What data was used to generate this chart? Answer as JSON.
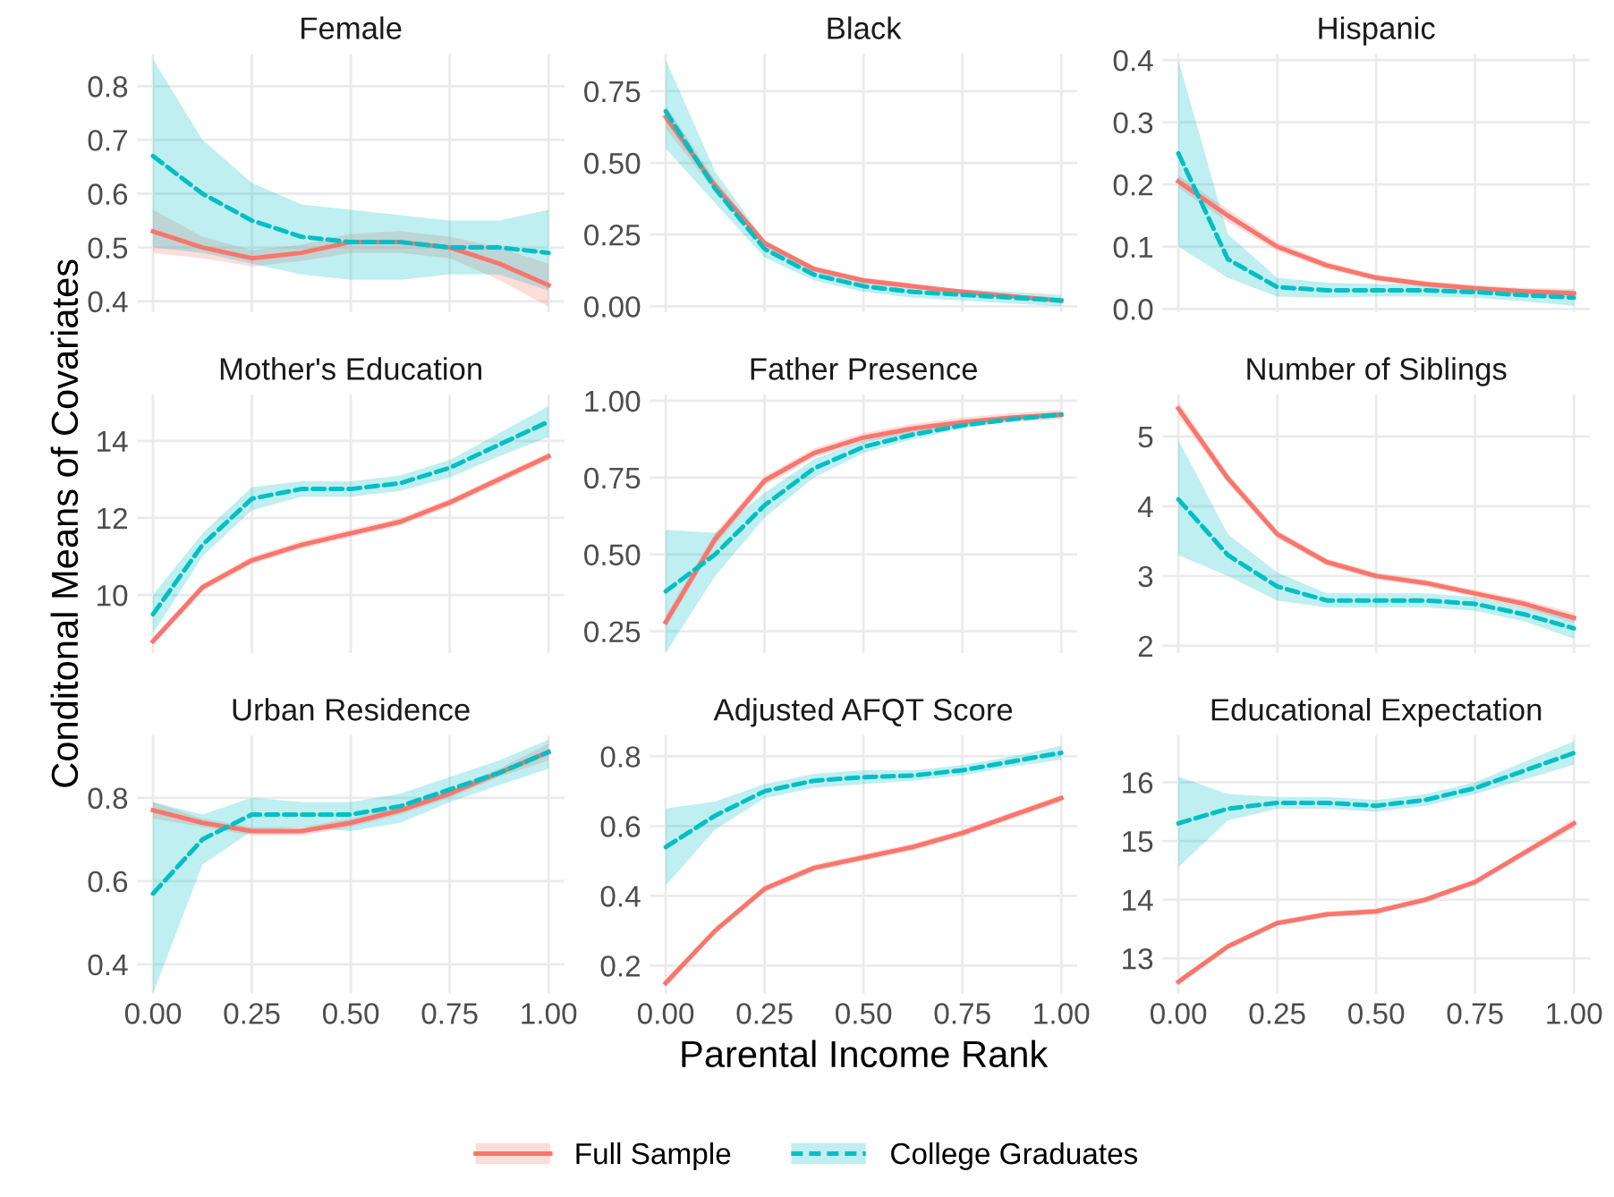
{
  "chart_data": [
    {
      "type": "line",
      "title": "Female",
      "x": [
        0,
        0.125,
        0.25,
        0.375,
        0.5,
        0.625,
        0.75,
        0.875,
        1
      ],
      "xlim": [
        -0.04,
        1.04
      ],
      "xticks": [
        0,
        0.25,
        0.5,
        0.75,
        1
      ],
      "ylim": [
        0.38,
        0.86
      ],
      "yticks": [
        0.4,
        0.5,
        0.6,
        0.7,
        0.8
      ],
      "grid": true,
      "tick_labels": "y",
      "series": [
        {
          "color": "#f8766d",
          "line_style": "solid",
          "values": [
            0.53,
            0.5,
            0.48,
            0.49,
            0.51,
            0.51,
            0.5,
            0.47,
            0.43
          ],
          "lower": [
            0.49,
            0.48,
            0.465,
            0.475,
            0.49,
            0.49,
            0.48,
            0.44,
            0.39
          ],
          "upper": [
            0.57,
            0.52,
            0.495,
            0.505,
            0.525,
            0.53,
            0.52,
            0.5,
            0.47
          ]
        },
        {
          "color": "#00bfc4",
          "line_style": "dashed",
          "values": [
            0.67,
            0.6,
            0.55,
            0.52,
            0.51,
            0.51,
            0.5,
            0.5,
            0.49
          ],
          "lower": [
            0.5,
            0.49,
            0.47,
            0.45,
            0.44,
            0.44,
            0.45,
            0.45,
            0.42
          ],
          "upper": [
            0.85,
            0.7,
            0.62,
            0.58,
            0.57,
            0.56,
            0.55,
            0.55,
            0.57
          ]
        }
      ]
    },
    {
      "type": "line",
      "title": "Black",
      "x": [
        0,
        0.125,
        0.25,
        0.375,
        0.5,
        0.625,
        0.75,
        0.875,
        1
      ],
      "xlim": [
        -0.04,
        1.04
      ],
      "xticks": [
        0,
        0.25,
        0.5,
        0.75,
        1
      ],
      "ylim": [
        -0.02,
        0.88
      ],
      "yticks": [
        {
          "value": 0,
          "label": "0.00"
        },
        0.25,
        {
          "value": 0.5,
          "label": "0.50"
        },
        0.75
      ],
      "grid": true,
      "tick_labels": "y",
      "series": [
        {
          "color": "#f8766d",
          "line_style": "solid",
          "values": [
            0.66,
            0.42,
            0.22,
            0.13,
            0.09,
            0.07,
            0.05,
            0.035,
            0.02
          ],
          "lower": [
            0.62,
            0.4,
            0.21,
            0.12,
            0.08,
            0.06,
            0.045,
            0.03,
            0.01
          ],
          "upper": [
            0.7,
            0.44,
            0.23,
            0.14,
            0.1,
            0.08,
            0.055,
            0.04,
            0.03
          ]
        },
        {
          "color": "#00bfc4",
          "line_style": "dashed",
          "values": [
            0.68,
            0.41,
            0.2,
            0.11,
            0.07,
            0.05,
            0.04,
            0.03,
            0.02
          ],
          "lower": [
            0.55,
            0.36,
            0.17,
            0.09,
            0.05,
            0.03,
            0.02,
            0.01,
            0.0
          ],
          "upper": [
            0.86,
            0.47,
            0.23,
            0.13,
            0.09,
            0.07,
            0.06,
            0.05,
            0.04
          ]
        }
      ]
    },
    {
      "type": "line",
      "title": "Hispanic",
      "x": [
        0,
        0.125,
        0.25,
        0.375,
        0.5,
        0.625,
        0.75,
        0.875,
        1
      ],
      "xlim": [
        -0.04,
        1.04
      ],
      "xticks": [
        0,
        0.25,
        0.5,
        0.75,
        1
      ],
      "ylim": [
        -0.005,
        0.41
      ],
      "yticks": [
        {
          "value": 0,
          "label": "0.0"
        },
        0.1,
        0.2,
        0.3,
        0.4
      ],
      "grid": true,
      "tick_labels": "y",
      "series": [
        {
          "color": "#f8766d",
          "line_style": "solid",
          "values": [
            0.205,
            0.15,
            0.1,
            0.07,
            0.05,
            0.04,
            0.033,
            0.028,
            0.025
          ],
          "lower": [
            0.195,
            0.14,
            0.093,
            0.064,
            0.045,
            0.035,
            0.028,
            0.022,
            0.018
          ],
          "upper": [
            0.215,
            0.16,
            0.107,
            0.076,
            0.055,
            0.045,
            0.038,
            0.034,
            0.032
          ]
        },
        {
          "color": "#00bfc4",
          "line_style": "dashed",
          "values": [
            0.25,
            0.08,
            0.035,
            0.03,
            0.03,
            0.03,
            0.027,
            0.022,
            0.018
          ],
          "lower": [
            0.1,
            0.05,
            0.02,
            0.018,
            0.02,
            0.02,
            0.018,
            0.012,
            0.005
          ],
          "upper": [
            0.4,
            0.12,
            0.05,
            0.042,
            0.04,
            0.04,
            0.035,
            0.032,
            0.03
          ]
        }
      ]
    },
    {
      "type": "line",
      "title": "Mother's Education",
      "ylabel": "Conditonal Means of Covariates",
      "x": [
        0,
        0.125,
        0.25,
        0.375,
        0.5,
        0.625,
        0.75,
        0.875,
        1
      ],
      "xlim": [
        -0.04,
        1.04
      ],
      "xticks": [
        0,
        0.25,
        0.5,
        0.75,
        1
      ],
      "ylim": [
        8.5,
        15.2
      ],
      "yticks": [
        10,
        12,
        14
      ],
      "grid": true,
      "tick_labels": "y",
      "series": [
        {
          "color": "#f8766d",
          "line_style": "solid",
          "values": [
            8.8,
            10.2,
            10.9,
            11.3,
            11.6,
            11.9,
            12.4,
            13.0,
            13.6
          ],
          "lower": [
            8.7,
            10.1,
            10.8,
            11.2,
            11.5,
            11.8,
            12.3,
            12.9,
            13.5
          ],
          "upper": [
            8.9,
            10.3,
            11.0,
            11.4,
            11.7,
            12.0,
            12.5,
            13.1,
            13.7
          ]
        },
        {
          "color": "#00bfc4",
          "line_style": "dashed",
          "values": [
            9.5,
            11.3,
            12.5,
            12.75,
            12.75,
            12.9,
            13.3,
            13.9,
            14.5
          ],
          "lower": [
            9.0,
            11.0,
            12.2,
            12.55,
            12.55,
            12.7,
            13.05,
            13.6,
            14.1
          ],
          "upper": [
            10.0,
            11.6,
            12.8,
            12.95,
            12.95,
            13.1,
            13.5,
            14.2,
            14.9
          ]
        }
      ]
    },
    {
      "type": "line",
      "title": "Father Presence",
      "x": [
        0,
        0.125,
        0.25,
        0.375,
        0.5,
        0.625,
        0.75,
        0.875,
        1
      ],
      "xlim": [
        -0.04,
        1.04
      ],
      "xticks": [
        0,
        0.25,
        0.5,
        0.75,
        1
      ],
      "ylim": [
        0.18,
        1.02
      ],
      "yticks": [
        0.25,
        {
          "value": 0.5,
          "label": "0.50"
        },
        0.75,
        {
          "value": 1,
          "label": "1.00"
        }
      ],
      "grid": true,
      "tick_labels": "y",
      "series": [
        {
          "color": "#f8766d",
          "line_style": "solid",
          "values": [
            0.28,
            0.55,
            0.74,
            0.83,
            0.88,
            0.91,
            0.93,
            0.945,
            0.955
          ],
          "lower": [
            0.26,
            0.53,
            0.725,
            0.815,
            0.865,
            0.895,
            0.915,
            0.93,
            0.94
          ],
          "upper": [
            0.3,
            0.57,
            0.755,
            0.845,
            0.895,
            0.925,
            0.945,
            0.96,
            0.97
          ]
        },
        {
          "color": "#00bfc4",
          "line_style": "dashed",
          "values": [
            0.38,
            0.5,
            0.66,
            0.78,
            0.85,
            0.89,
            0.92,
            0.94,
            0.955
          ],
          "lower": [
            0.18,
            0.43,
            0.62,
            0.75,
            0.83,
            0.875,
            0.91,
            0.935,
            0.945
          ],
          "upper": [
            0.58,
            0.57,
            0.7,
            0.81,
            0.87,
            0.905,
            0.93,
            0.95,
            0.965
          ]
        }
      ]
    },
    {
      "type": "line",
      "title": "Number of Siblings",
      "x": [
        0,
        0.125,
        0.25,
        0.375,
        0.5,
        0.625,
        0.75,
        0.875,
        1
      ],
      "xlim": [
        -0.04,
        1.04
      ],
      "xticks": [
        0,
        0.25,
        0.5,
        0.75,
        1
      ],
      "ylim": [
        1.9,
        5.6
      ],
      "yticks": [
        2,
        3,
        4,
        5
      ],
      "grid": true,
      "tick_labels": "y",
      "series": [
        {
          "color": "#f8766d",
          "line_style": "solid",
          "values": [
            5.4,
            4.4,
            3.6,
            3.2,
            3.0,
            2.9,
            2.75,
            2.6,
            2.4
          ],
          "lower": [
            5.3,
            4.33,
            3.54,
            3.15,
            2.95,
            2.85,
            2.7,
            2.54,
            2.33
          ],
          "upper": [
            5.5,
            4.47,
            3.66,
            3.25,
            3.05,
            2.95,
            2.8,
            2.66,
            2.47
          ]
        },
        {
          "color": "#00bfc4",
          "line_style": "dashed",
          "values": [
            4.1,
            3.3,
            2.85,
            2.65,
            2.65,
            2.65,
            2.6,
            2.45,
            2.25
          ],
          "lower": [
            3.3,
            3.0,
            2.65,
            2.55,
            2.55,
            2.55,
            2.5,
            2.35,
            2.1
          ],
          "upper": [
            4.95,
            3.6,
            3.05,
            2.75,
            2.75,
            2.75,
            2.7,
            2.55,
            2.4
          ]
        }
      ]
    },
    {
      "type": "line",
      "title": "Urban Residence",
      "x": [
        0,
        0.125,
        0.25,
        0.375,
        0.5,
        0.625,
        0.75,
        0.875,
        1
      ],
      "xlim": [
        -0.04,
        1.04
      ],
      "xticks": [
        {
          "value": 0,
          "label": "0.00"
        },
        {
          "value": 0.25,
          "label": "0.25"
        },
        {
          "value": 0.5,
          "label": "0.50"
        },
        {
          "value": 0.75,
          "label": "0.75"
        },
        {
          "value": 1,
          "label": "1.00"
        }
      ],
      "ylim": [
        0.33,
        0.95
      ],
      "yticks": [
        0.4,
        0.6,
        0.8
      ],
      "grid": true,
      "series": [
        {
          "color": "#f8766d",
          "line_style": "solid",
          "values": [
            0.77,
            0.74,
            0.72,
            0.72,
            0.74,
            0.77,
            0.81,
            0.86,
            0.91
          ],
          "lower": [
            0.75,
            0.73,
            0.71,
            0.71,
            0.73,
            0.76,
            0.8,
            0.85,
            0.89
          ],
          "upper": [
            0.79,
            0.75,
            0.73,
            0.73,
            0.75,
            0.78,
            0.82,
            0.87,
            0.93
          ]
        },
        {
          "color": "#00bfc4",
          "line_style": "dashed",
          "values": [
            0.57,
            0.7,
            0.76,
            0.76,
            0.76,
            0.78,
            0.82,
            0.86,
            0.91
          ],
          "lower": [
            0.33,
            0.64,
            0.72,
            0.73,
            0.72,
            0.74,
            0.79,
            0.83,
            0.87
          ],
          "upper": [
            0.79,
            0.76,
            0.8,
            0.79,
            0.79,
            0.81,
            0.85,
            0.89,
            0.94
          ]
        }
      ]
    },
    {
      "type": "line",
      "title": "Adjusted AFQT Score",
      "xlabel": "Parental Income Rank",
      "legend": "bottom",
      "x": [
        0,
        0.125,
        0.25,
        0.375,
        0.5,
        0.625,
        0.75,
        0.875,
        1
      ],
      "xlim": [
        -0.04,
        1.04
      ],
      "xticks": [
        {
          "value": 0,
          "label": "0.00"
        },
        {
          "value": 0.25,
          "label": "0.25"
        },
        {
          "value": 0.5,
          "label": "0.50"
        },
        {
          "value": 0.75,
          "label": "0.75"
        },
        {
          "value": 1,
          "label": "1.00"
        }
      ],
      "ylim": [
        0.12,
        0.86
      ],
      "yticks": [
        0.2,
        0.4,
        0.6,
        0.8
      ],
      "grid": true,
      "series": [
        {
          "name": "Full Sample",
          "color": "#f8766d",
          "line_style": "solid",
          "values": [
            0.15,
            0.3,
            0.42,
            0.48,
            0.51,
            0.54,
            0.58,
            0.63,
            0.68
          ],
          "lower": [
            0.14,
            0.29,
            0.41,
            0.47,
            0.5,
            0.53,
            0.57,
            0.62,
            0.67
          ],
          "upper": [
            0.16,
            0.31,
            0.43,
            0.49,
            0.52,
            0.55,
            0.59,
            0.64,
            0.69
          ]
        },
        {
          "name": "College Graduates",
          "color": "#00bfc4",
          "line_style": "dashed",
          "values": [
            0.54,
            0.63,
            0.7,
            0.73,
            0.74,
            0.745,
            0.76,
            0.785,
            0.81
          ],
          "lower": [
            0.43,
            0.59,
            0.68,
            0.71,
            0.72,
            0.73,
            0.745,
            0.77,
            0.79
          ],
          "upper": [
            0.65,
            0.67,
            0.72,
            0.75,
            0.76,
            0.76,
            0.775,
            0.8,
            0.83
          ]
        }
      ]
    },
    {
      "type": "line",
      "title": "Educational Expectation",
      "x": [
        0,
        0.125,
        0.25,
        0.375,
        0.5,
        0.625,
        0.75,
        0.875,
        1
      ],
      "xlim": [
        -0.04,
        1.04
      ],
      "xticks": [
        {
          "value": 0,
          "label": "0.00"
        },
        {
          "value": 0.25,
          "label": "0.25"
        },
        {
          "value": 0.5,
          "label": "0.50"
        },
        {
          "value": 0.75,
          "label": "0.75"
        },
        {
          "value": 1,
          "label": "1.00"
        }
      ],
      "ylim": [
        12.4,
        16.8
      ],
      "yticks": [
        13,
        14,
        15,
        16
      ],
      "grid": true,
      "series": [
        {
          "color": "#f8766d",
          "line_style": "solid",
          "values": [
            12.6,
            13.2,
            13.6,
            13.75,
            13.8,
            14.0,
            14.3,
            14.8,
            15.3
          ],
          "lower": [
            12.54,
            13.15,
            13.55,
            13.7,
            13.75,
            13.95,
            14.25,
            14.74,
            15.22
          ],
          "upper": [
            12.66,
            13.25,
            13.65,
            13.8,
            13.85,
            14.05,
            14.35,
            14.86,
            15.38
          ]
        },
        {
          "color": "#00bfc4",
          "line_style": "dashed",
          "values": [
            15.3,
            15.55,
            15.65,
            15.65,
            15.6,
            15.7,
            15.9,
            16.2,
            16.5
          ],
          "lower": [
            14.55,
            15.35,
            15.55,
            15.55,
            15.5,
            15.6,
            15.8,
            16.05,
            16.3
          ],
          "upper": [
            16.1,
            15.8,
            15.75,
            15.75,
            15.7,
            15.8,
            16.0,
            16.35,
            16.7
          ]
        }
      ]
    }
  ]
}
